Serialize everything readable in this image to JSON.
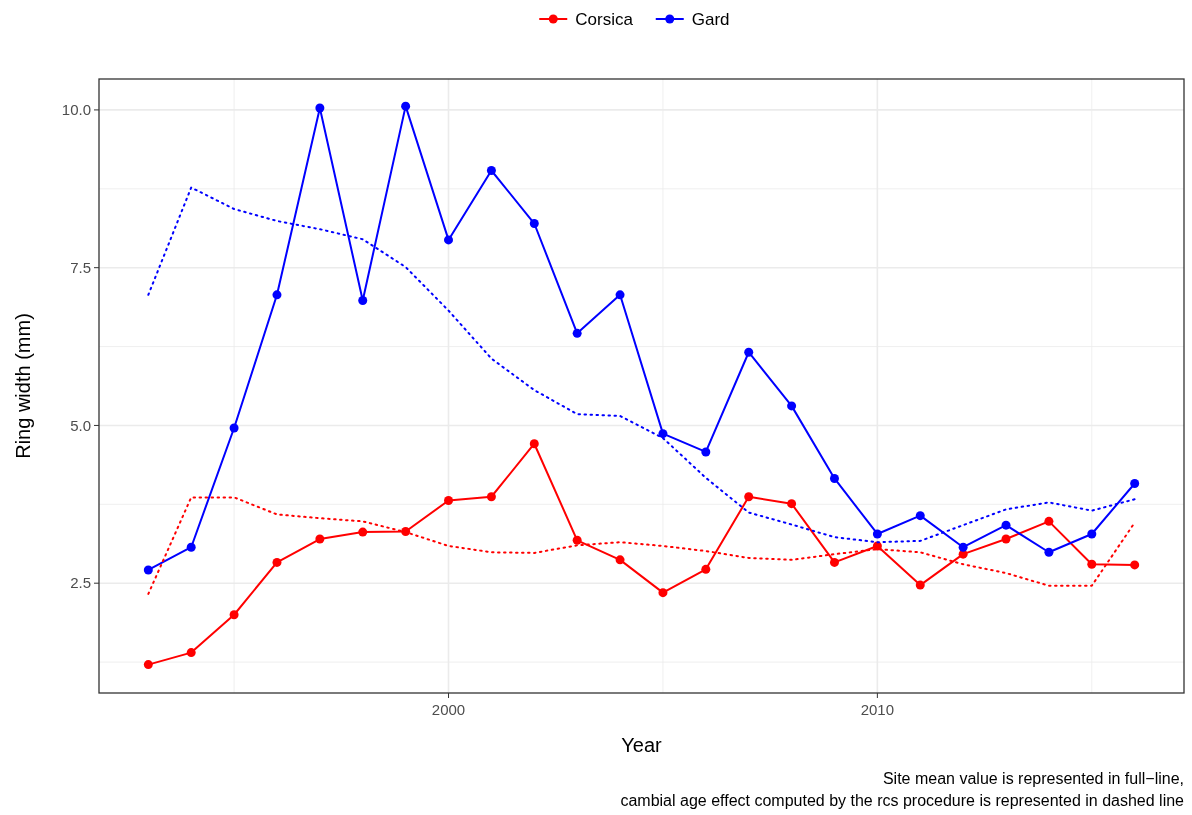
{
  "chart_data": {
    "type": "line",
    "xlabel": "Year",
    "ylabel": "Ring width (mm)",
    "x": [
      1993,
      1994,
      1995,
      1996,
      1997,
      1998,
      1999,
      2000,
      2001,
      2002,
      2003,
      2004,
      2005,
      2006,
      2007,
      2008,
      2009,
      2010,
      2011,
      2012,
      2013,
      2014,
      2015,
      2016
    ],
    "xlim": [
      1991.85,
      2017.15
    ],
    "xticks": [
      {
        "value": 1995,
        "label": null
      },
      2000,
      {
        "value": 2005,
        "label": null
      },
      2010,
      {
        "value": 2015,
        "label": null
      }
    ],
    "ylim": [
      0.76,
      10.49
    ],
    "yticks": [
      {
        "value": 1.25,
        "label": null
      },
      2.5,
      {
        "value": 3.75,
        "label": null
      },
      {
        "value": 5,
        "label": "5.0"
      },
      {
        "value": 6.25,
        "label": null
      },
      7.5,
      {
        "value": 8.75,
        "label": null
      },
      {
        "value": 10,
        "label": "10.0"
      }
    ],
    "grid": true,
    "legend": "top",
    "marker": "circle",
    "line_style": "solid",
    "series": [
      {
        "name": "Corsica",
        "color": "#ff0000",
        "values": [
          1.21,
          1.4,
          2.0,
          2.83,
          3.2,
          3.31,
          3.32,
          3.81,
          3.87,
          4.71,
          3.18,
          2.87,
          2.35,
          2.72,
          3.87,
          3.76,
          2.83,
          3.09,
          2.47,
          2.96,
          3.2,
          3.48,
          2.8,
          2.79
        ]
      },
      {
        "name": "Gard",
        "color": "#0000ff",
        "values": [
          2.71,
          3.07,
          4.96,
          7.07,
          10.03,
          6.98,
          10.06,
          7.94,
          9.04,
          8.2,
          6.46,
          7.07,
          4.87,
          4.58,
          6.16,
          5.31,
          4.16,
          3.28,
          3.57,
          3.07,
          3.42,
          2.99,
          3.28,
          4.08
        ]
      },
      {
        "color": "#ff0000",
        "marker": "none",
        "line_style": "dotted",
        "values": [
          2.33,
          3.86,
          3.86,
          3.59,
          3.53,
          3.48,
          3.31,
          3.09,
          2.99,
          2.98,
          3.1,
          3.15,
          3.09,
          3.01,
          2.9,
          2.87,
          2.96,
          3.04,
          2.99,
          2.8,
          2.66,
          2.46,
          2.46,
          3.46
        ]
      },
      {
        "color": "#0000ff",
        "marker": "none",
        "line_style": "dotted",
        "values": [
          7.07,
          8.77,
          8.43,
          8.24,
          8.11,
          7.95,
          7.51,
          6.82,
          6.06,
          5.56,
          5.18,
          5.15,
          4.8,
          4.17,
          3.62,
          3.43,
          3.23,
          3.15,
          3.17,
          3.42,
          3.67,
          3.78,
          3.65,
          3.83
        ]
      }
    ],
    "annotations": [
      "Site mean value is represented in full−line,",
      "cambial age effect computed by the rcs procedure is represented in dashed line"
    ]
  }
}
